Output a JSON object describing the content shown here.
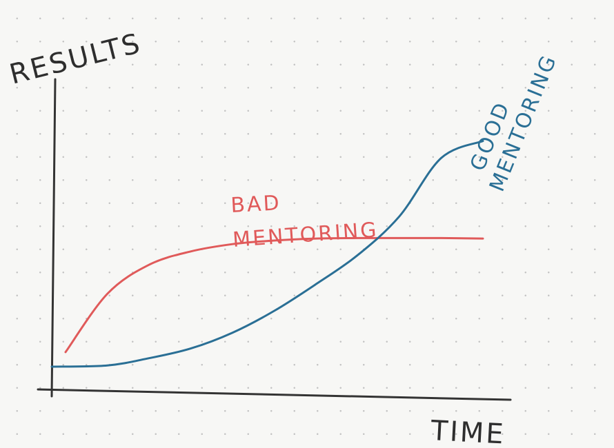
{
  "chart_data": {
    "type": "line",
    "xlabel": "TIME",
    "ylabel": "RESULTS",
    "x": [
      0,
      1,
      2,
      3,
      4,
      5,
      6,
      7,
      8,
      9,
      10
    ],
    "series": [
      {
        "name": "BAD MENTORING",
        "name_lines": [
          "BAD",
          "MENTORING"
        ],
        "color": "#e05a5a",
        "values": [
          0.6,
          3.0,
          4.2,
          4.75,
          5.05,
          5.2,
          5.28,
          5.3,
          5.3,
          5.3,
          5.28
        ]
      },
      {
        "name": "GOOD MENTORING",
        "name_lines": [
          "GOOD",
          "MENTORING"
        ],
        "color": "#2a6f95",
        "values": [
          0.0,
          0.05,
          0.35,
          0.75,
          1.4,
          2.3,
          3.4,
          4.6,
          6.2,
          8.6,
          9.3
        ]
      }
    ],
    "xlim": [
      0,
      10
    ],
    "ylim": [
      0,
      10
    ],
    "grid": "dotted",
    "legend": "inline labels"
  }
}
